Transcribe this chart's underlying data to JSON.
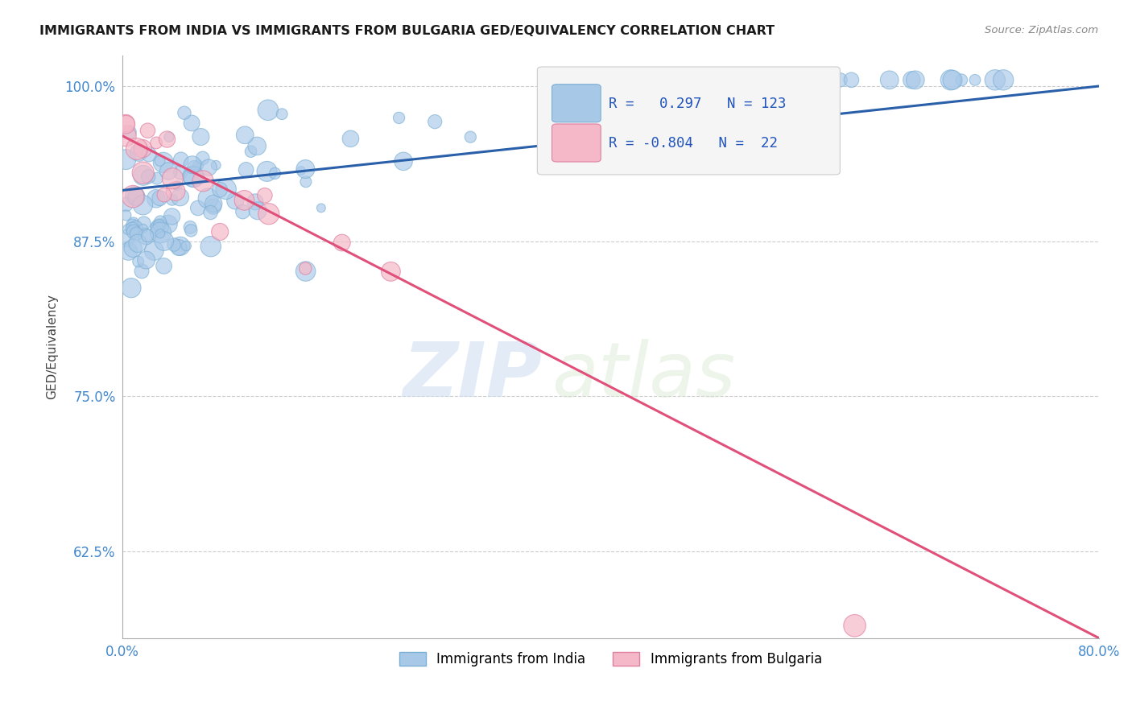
{
  "title": "IMMIGRANTS FROM INDIA VS IMMIGRANTS FROM BULGARIA GED/EQUIVALENCY CORRELATION CHART",
  "source_text": "Source: ZipAtlas.com",
  "ylabel": "GED/Equivalency",
  "r_india": 0.297,
  "n_india": 123,
  "r_bulgaria": -0.804,
  "n_bulgaria": 22,
  "color_india": "#a8c8e8",
  "color_india_edge": "#7aafd4",
  "color_bulgaria": "#f4b8c8",
  "color_bulgaria_edge": "#e080a0",
  "color_line_india": "#2a5faa",
  "color_line_bulgaria": "#e0507a",
  "xlim": [
    0.0,
    0.8
  ],
  "ylim": [
    0.555,
    1.025
  ],
  "yticks": [
    0.625,
    0.75,
    0.875,
    1.0
  ],
  "ytick_labels": [
    "62.5%",
    "75.0%",
    "87.5%",
    "100.0%"
  ],
  "xticks": [
    0.0,
    0.1,
    0.2,
    0.3,
    0.4,
    0.5,
    0.6,
    0.7,
    0.8
  ],
  "xtick_labels": [
    "0.0%",
    "",
    "",
    "",
    "",
    "",
    "",
    "",
    "80.0%"
  ],
  "trend_india_x0": 0.0,
  "trend_india_x1": 0.8,
  "trend_india_y0": 0.916,
  "trend_india_y1": 1.0,
  "trend_bulgaria_x0": 0.0,
  "trend_bulgaria_x1": 0.8,
  "trend_bulgaria_y0": 0.96,
  "trend_bulgaria_y1": 0.555,
  "watermark_line1": "ZIP",
  "watermark_line2": "atlas",
  "legend_india_label": "Immigrants from India",
  "legend_bulgaria_label": "Immigrants from Bulgaria",
  "title_color": "#1a1a1a",
  "source_color": "#888888",
  "axis_label_color": "#444444",
  "tick_label_color": "#4488cc",
  "grid_color": "#cccccc",
  "background_color": "#ffffff"
}
